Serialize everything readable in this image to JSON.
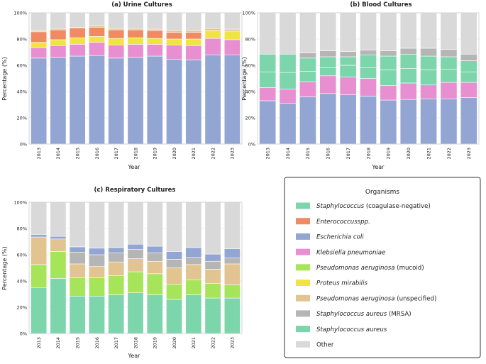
{
  "legend": {
    "title": "Organisms",
    "items": [
      {
        "key": "cons",
        "italic": "Staphylococcus",
        "rest": " (coagulase-negative)",
        "color": "#7dd5ac"
      },
      {
        "key": "ent",
        "italic": "Enterococcusspp.",
        "rest": "",
        "color": "#ef8a62"
      },
      {
        "key": "ecoli",
        "italic": "Escherichia coli",
        "rest": "",
        "color": "#93a6d3"
      },
      {
        "key": "kleb",
        "italic": "Klebsiella pneumoniae",
        "rest": "",
        "color": "#e88fd1"
      },
      {
        "key": "pam",
        "italic": "Pseudomonas aeruginosa",
        "rest": " (mucoid)",
        "color": "#a6e45a"
      },
      {
        "key": "prot",
        "italic": "Proteus mirabilis",
        "rest": "",
        "color": "#f0e442"
      },
      {
        "key": "pau",
        "italic": "Pseudomonas aeruginosa",
        "rest": " (unspecified)",
        "color": "#e2c490"
      },
      {
        "key": "mrsa",
        "italic": "Staphylococcus aureus",
        "rest": " (MRSA)",
        "color": "#b5b5b5"
      },
      {
        "key": "sa",
        "italic": "Staphylococcus aureus",
        "rest": "",
        "color": "#7dd5ac"
      },
      {
        "key": "other",
        "italic": "",
        "rest": "Other",
        "color": "#d9d9d9"
      }
    ]
  },
  "chart_data": [
    {
      "id": "urine",
      "type": "bar",
      "stacked": true,
      "title": "(a) Urine Cultures",
      "xlabel": "Year",
      "ylabel": "Percentage (%)",
      "ylim": [
        0,
        100
      ],
      "yticks": [
        "0%",
        "20%",
        "40%",
        "60%",
        "80%",
        "100%"
      ],
      "categories": [
        "2013",
        "2014",
        "2015",
        "2016",
        "2017",
        "2018",
        "2019",
        "2020",
        "2021",
        "2022",
        "2023"
      ],
      "series": [
        {
          "key": "ecoli",
          "values": [
            65.5,
            66,
            67,
            67.5,
            65.5,
            66,
            67,
            64.5,
            64,
            68,
            68
          ]
        },
        {
          "key": "kleb",
          "values": [
            8,
            9,
            9,
            10,
            10,
            10,
            9,
            11,
            11,
            12.5,
            11.5
          ]
        },
        {
          "key": "prot",
          "values": [
            4,
            4.5,
            5,
            4.5,
            5,
            5,
            4.5,
            4.5,
            5,
            6,
            6.5
          ]
        },
        {
          "key": "ent",
          "values": [
            8,
            7.5,
            7.5,
            7,
            6.5,
            6,
            6,
            5,
            5,
            0,
            0
          ]
        },
        {
          "key": "pau",
          "values": [
            1,
            1,
            0.5,
            1,
            1,
            1,
            1,
            1.5,
            1.5,
            1.5,
            1.5
          ]
        },
        {
          "key": "other",
          "values": [
            13.5,
            12,
            11,
            10,
            12,
            12,
            12.5,
            13.5,
            13.5,
            12,
            12.5
          ]
        }
      ]
    },
    {
      "id": "blood",
      "type": "bar",
      "stacked": true,
      "title": "(b) Blood Cultures",
      "xlabel": "Year",
      "ylabel": "Percentage (%)",
      "ylim": [
        0,
        100
      ],
      "yticks": [
        "0%",
        "20%",
        "40%",
        "60%",
        "80%",
        "100%"
      ],
      "categories": [
        "2013",
        "2014",
        "2015",
        "2016",
        "2017",
        "2018",
        "2019",
        "2020",
        "2021",
        "2022",
        "2023"
      ],
      "series": [
        {
          "key": "ecoli",
          "values": [
            33,
            31,
            36,
            38.5,
            37.5,
            36.5,
            33.5,
            34,
            34.5,
            34.5,
            35.5
          ]
        },
        {
          "key": "kleb",
          "values": [
            10,
            11,
            11.5,
            13.5,
            13.5,
            13.5,
            11,
            12.5,
            10.5,
            12.5,
            11.5
          ]
        },
        {
          "key": "sa",
          "values": [
            12,
            12.5,
            8,
            6,
            9,
            8,
            12,
            11,
            11.5,
            10,
            8
          ]
        },
        {
          "key": "cons",
          "values": [
            13.5,
            14,
            10,
            8.5,
            6.5,
            10,
            10.5,
            11,
            10.5,
            9.5,
            8.5
          ]
        },
        {
          "key": "mrsa",
          "values": [
            0,
            0,
            4,
            4.5,
            4,
            3.5,
            4,
            4.5,
            6,
            5.5,
            5
          ]
        },
        {
          "key": "other",
          "values": [
            31.5,
            31.5,
            30.5,
            29,
            29.5,
            28.5,
            29,
            27,
            27,
            28,
            31.5
          ]
        }
      ]
    },
    {
      "id": "resp",
      "type": "bar",
      "stacked": true,
      "title": "(c) Respiratory Cultures",
      "xlabel": "Year",
      "ylabel": "Percentage (%)",
      "ylim": [
        0,
        100
      ],
      "yticks": [
        "0%",
        "20%",
        "40%",
        "60%",
        "80%",
        "100%"
      ],
      "categories": [
        "2013",
        "2014",
        "2015",
        "2016",
        "2017",
        "2018",
        "2019",
        "2020",
        "2021",
        "2022",
        "2023"
      ],
      "series": [
        {
          "key": "sa",
          "values": [
            35,
            42,
            28.5,
            28.5,
            29.5,
            31,
            29.5,
            26,
            29.5,
            27,
            27
          ]
        },
        {
          "key": "pam",
          "values": [
            17.5,
            20.5,
            14,
            14,
            14.5,
            16,
            16,
            11.5,
            11.5,
            11,
            10
          ]
        },
        {
          "key": "pau",
          "values": [
            21,
            9.5,
            10.5,
            8.5,
            10.5,
            10,
            9.5,
            12.5,
            11.5,
            11,
            16
          ]
        },
        {
          "key": "mrsa",
          "values": [
            0,
            0,
            9,
            9,
            7,
            7,
            6.5,
            6.5,
            5.5,
            6,
            4.5
          ]
        },
        {
          "key": "ecoli",
          "values": [
            2,
            2,
            4,
            5,
            4,
            4,
            5,
            6,
            7.5,
            5.5,
            7
          ]
        },
        {
          "key": "other",
          "values": [
            24.5,
            26,
            34,
            35,
            34.5,
            32,
            33.5,
            37.5,
            34.5,
            39.5,
            35.5
          ]
        }
      ]
    }
  ]
}
